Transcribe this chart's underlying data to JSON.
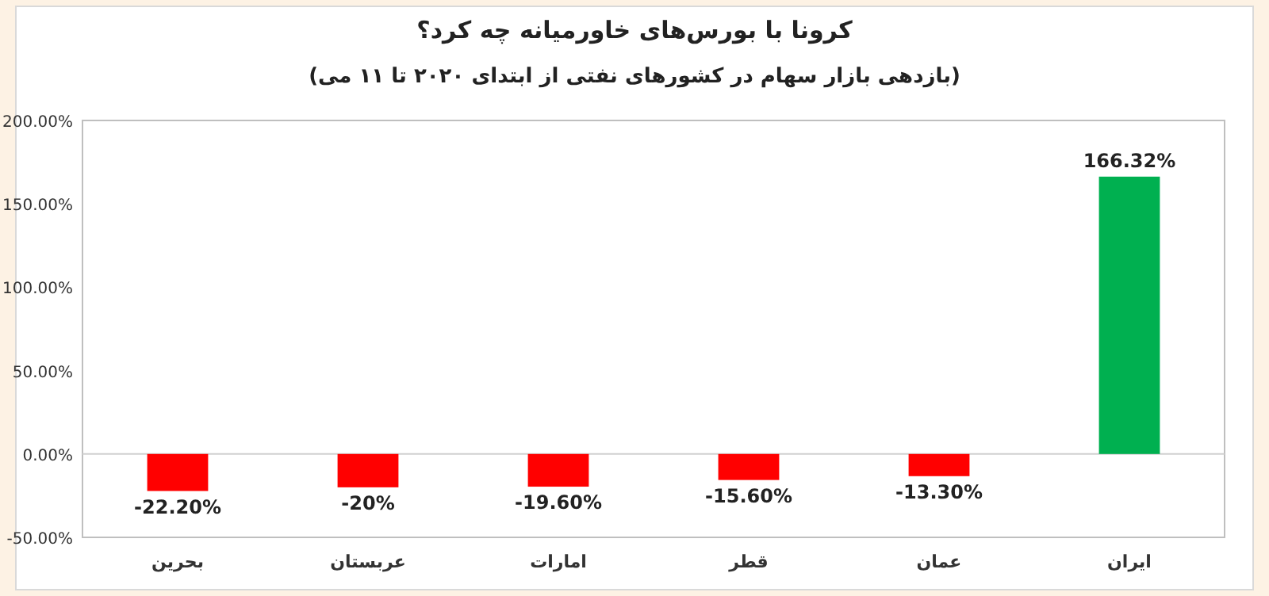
{
  "chart_data": {
    "type": "bar",
    "title": "کرونا با بورس‌های خاورمیانه چه کرد؟",
    "subtitle": "(بازدهی بازار سهام در کشورهای نفتی از ابتدای ۲۰۲۰ تا ۱۱ می)",
    "categories": [
      "بحرین",
      "عربستان",
      "امارات",
      "قطر",
      "عمان",
      "ایران"
    ],
    "values": [
      -22.2,
      -20,
      -19.6,
      -15.6,
      -13.3,
      166.32
    ],
    "colors": [
      "#ff0000",
      "#ff0000",
      "#ff0000",
      "#ff0000",
      "#ff0000",
      "#00b050"
    ],
    "value_labels": [
      "-22.20%",
      "-20%",
      "-19.60%",
      "-15.60%",
      "-13.30%",
      "166.32%"
    ],
    "ylim": [
      -50,
      200
    ],
    "yticks": [
      {
        "value": -50,
        "label": "-50.00%"
      },
      {
        "value": 0,
        "label": "0.00%"
      },
      {
        "value": 50,
        "label": "50.00%"
      },
      {
        "value": 100,
        "label": "100.00%"
      },
      {
        "value": 150,
        "label": "150.00%"
      },
      {
        "value": 200,
        "label": "200.00%"
      }
    ]
  }
}
